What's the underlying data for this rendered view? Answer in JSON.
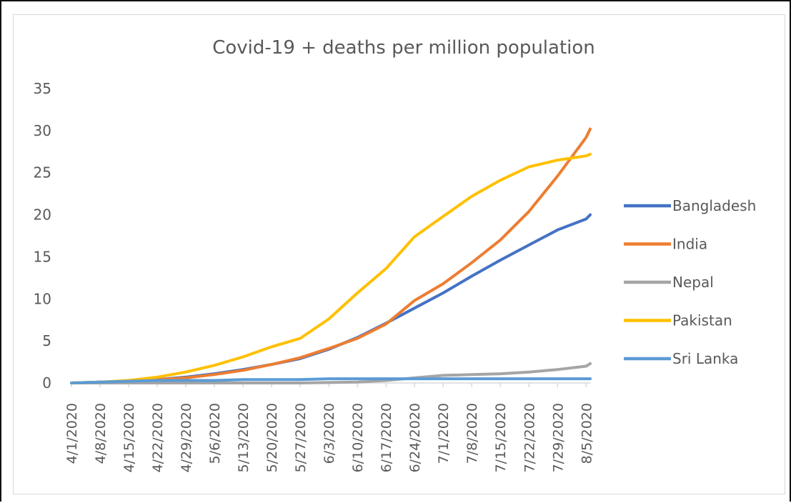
{
  "chart_data": {
    "type": "line",
    "title": "Covid-19 + deaths per million population",
    "xlabel": "",
    "ylabel": "",
    "ylim": [
      0,
      35
    ],
    "yticks": [
      0,
      5,
      10,
      15,
      20,
      25,
      30,
      35
    ],
    "x_tick_labels": [
      "4/1/2020",
      "4/8/2020",
      "4/15/2020",
      "4/22/2020",
      "4/29/2020",
      "5/6/2020",
      "5/13/2020",
      "5/20/2020",
      "5/27/2020",
      "6/3/2020",
      "6/10/2020",
      "6/17/2020",
      "6/24/2020",
      "7/1/2020",
      "7/8/2020",
      "7/15/2020",
      "7/22/2020",
      "7/29/2020",
      "8/5/2020"
    ],
    "x_dates": [
      "4/1/2020",
      "4/8/2020",
      "4/15/2020",
      "4/22/2020",
      "4/29/2020",
      "5/6/2020",
      "5/13/2020",
      "5/20/2020",
      "5/27/2020",
      "6/3/2020",
      "6/10/2020",
      "6/17/2020",
      "6/24/2020",
      "7/1/2020",
      "7/8/2020",
      "7/15/2020",
      "7/22/2020",
      "7/29/2020",
      "8/5/2020",
      "8/6/2020"
    ],
    "grid": false,
    "legend_position": "right",
    "series": [
      {
        "name": "Bangladesh",
        "color": "#4472C4",
        "values": [
          0,
          0.1,
          0.2,
          0.4,
          0.7,
          1.1,
          1.6,
          2.2,
          2.9,
          4.0,
          5.4,
          7.1,
          8.9,
          10.7,
          12.7,
          14.6,
          16.4,
          18.2,
          19.5,
          20.0
        ]
      },
      {
        "name": "India",
        "color": "#ED7D31",
        "values": [
          0,
          0.1,
          0.2,
          0.4,
          0.6,
          1.0,
          1.5,
          2.2,
          3.0,
          4.1,
          5.3,
          7.0,
          9.8,
          11.8,
          14.3,
          17.0,
          20.4,
          24.6,
          29.2,
          30.2
        ]
      },
      {
        "name": "Nepal",
        "color": "#A5A5A5",
        "values": [
          0,
          0,
          0,
          0,
          0,
          0,
          0,
          0,
          0,
          0.05,
          0.1,
          0.3,
          0.6,
          0.9,
          1.0,
          1.1,
          1.3,
          1.6,
          2.0,
          2.3
        ]
      },
      {
        "name": "Pakistan",
        "color": "#FFC000",
        "values": [
          0,
          0.1,
          0.3,
          0.7,
          1.3,
          2.1,
          3.1,
          4.3,
          5.3,
          7.6,
          10.7,
          13.6,
          17.4,
          19.8,
          22.2,
          24.1,
          25.7,
          26.5,
          27.0,
          27.2
        ]
      },
      {
        "name": "Sri Lanka",
        "color": "#5B9BD5",
        "values": [
          0,
          0.1,
          0.2,
          0.3,
          0.3,
          0.3,
          0.4,
          0.4,
          0.4,
          0.5,
          0.5,
          0.5,
          0.5,
          0.5,
          0.5,
          0.5,
          0.5,
          0.5,
          0.5,
          0.5
        ]
      }
    ]
  }
}
